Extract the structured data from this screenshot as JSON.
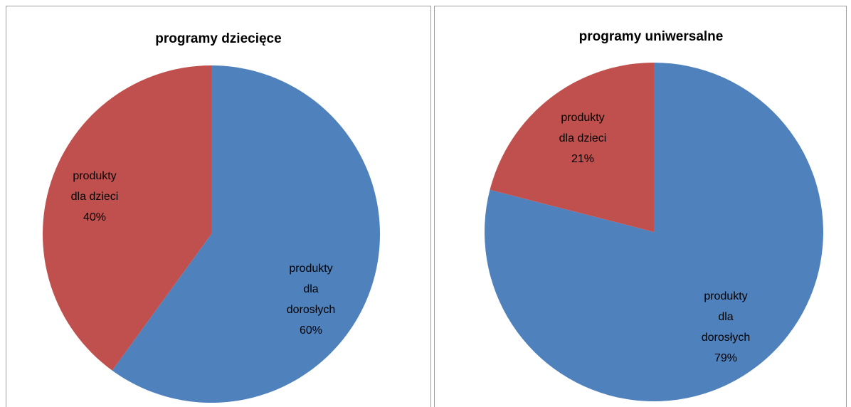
{
  "chart_data": [
    {
      "type": "pie",
      "title": "programy dziecięce",
      "categories": [
        "produkty dla dorosłych",
        "produkty dla dzieci"
      ],
      "values": [
        60,
        40
      ],
      "value_labels": [
        "60%",
        "40%"
      ],
      "colors": [
        "#4f81bd",
        "#c0504d"
      ]
    },
    {
      "type": "pie",
      "title": "programy uniwersalne",
      "categories": [
        "produkty dla dorosłych",
        "produkty dla dzieci"
      ],
      "values": [
        79,
        21
      ],
      "value_labels": [
        "79%",
        "21%"
      ],
      "colors": [
        "#4f81bd",
        "#c0504d"
      ]
    }
  ]
}
